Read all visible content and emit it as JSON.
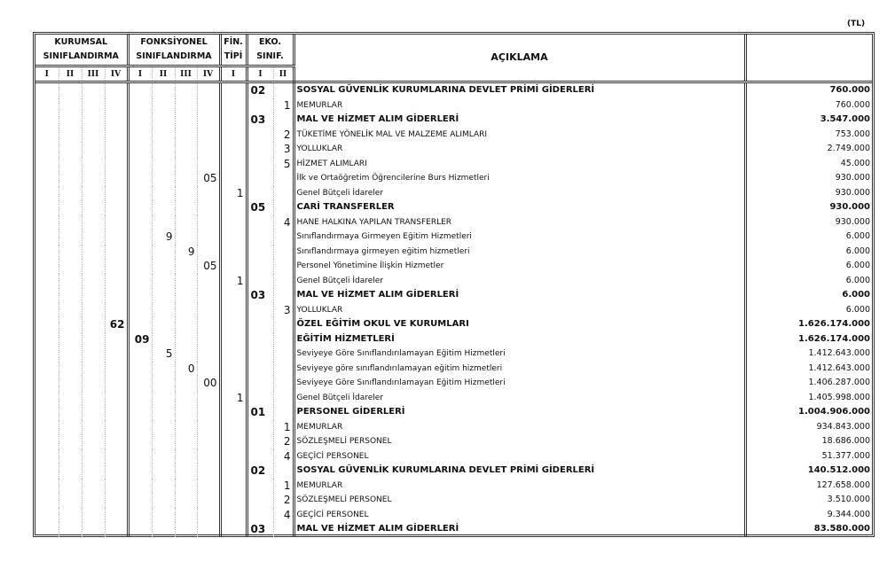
{
  "unit": "(TL)",
  "header": {
    "kurumsal": [
      "KURUMSAL",
      "SINIFLANDIRMA"
    ],
    "fonksiyonel": [
      "FONKSİYONEL",
      "SINIFLANDIRMA"
    ],
    "fin": [
      "FİN.",
      "TİPİ"
    ],
    "eko": [
      "EKO.",
      "SINIF."
    ],
    "aciklama": "AÇIKLAMA",
    "levels4": [
      "I",
      "II",
      "III",
      "IV"
    ],
    "levels1": [
      "I"
    ],
    "levels2": [
      "I",
      "II"
    ]
  },
  "rows": [
    {
      "e1": "02",
      "desc": "SOSYAL GÜVENLİK KURUMLARINA DEVLET PRİMİ GİDERLERİ",
      "amount": "760.000",
      "bold": true
    },
    {
      "e2": "1",
      "desc": "MEMURLAR",
      "amount": "760.000"
    },
    {
      "e1": "03",
      "desc": "MAL VE HİZMET ALIM GİDERLERİ",
      "amount": "3.547.000",
      "bold": true
    },
    {
      "e2": "2",
      "desc": "TÜKETİME YÖNELİK MAL VE MALZEME ALIMLARI",
      "amount": "753.000"
    },
    {
      "e2": "3",
      "desc": "YOLLUKLAR",
      "amount": "2.749.000"
    },
    {
      "e2": "5",
      "desc": "HİZMET ALIMLARI",
      "amount": "45.000"
    },
    {
      "f4": "05",
      "desc": "İlk ve Ortaöğretim Öğrencilerine Burs Hizmetleri",
      "amount": "930.000"
    },
    {
      "fin": "1",
      "desc": "Genel Bütçeli İdareler",
      "amount": "930.000"
    },
    {
      "e1": "05",
      "desc": "CARİ TRANSFERLER",
      "amount": "930.000",
      "bold": true
    },
    {
      "e2": "4",
      "desc": "HANE HALKINA YAPILAN TRANSFERLER",
      "amount": "930.000"
    },
    {
      "f2": "9",
      "desc": "Sınıflandırmaya Girmeyen Eğitim Hizmetleri",
      "amount": "6.000"
    },
    {
      "f3": "9",
      "desc": "Sınıflandırmaya girmeyen eğitim hizmetleri",
      "amount": "6.000"
    },
    {
      "f4": "05",
      "desc": "Personel Yönetimine İlişkin Hizmetler",
      "amount": "6.000"
    },
    {
      "fin": "1",
      "desc": "Genel Bütçeli İdareler",
      "amount": "6.000"
    },
    {
      "e1": "03",
      "desc": "MAL VE HİZMET ALIM GİDERLERİ",
      "amount": "6.000",
      "bold": true
    },
    {
      "e2": "3",
      "desc": "YOLLUKLAR",
      "amount": "6.000"
    },
    {
      "k4": "62",
      "desc": "ÖZEL EĞİTİM OKUL VE KURUMLARI",
      "amount": "1.626.174.000",
      "bold": true
    },
    {
      "f1": "09",
      "desc": "EĞİTİM HİZMETLERİ",
      "amount": "1.626.174.000",
      "bold": true
    },
    {
      "f2": "5",
      "desc": "Seviyeye Göre Sınıflandırılamayan Eğitim Hizmetleri",
      "amount": "1.412.643.000"
    },
    {
      "f3": "0",
      "desc": "Seviyeye göre sınıflandırılamayan eğitim hizmetleri",
      "amount": "1.412.643.000"
    },
    {
      "f4": "00",
      "desc": "Seviyeye Göre Sınıflandırılamayan Eğitim Hizmetleri",
      "amount": "1.406.287.000"
    },
    {
      "fin": "1",
      "desc": "Genel Bütçeli İdareler",
      "amount": "1.405.998.000"
    },
    {
      "e1": "01",
      "desc": "PERSONEL GİDERLERİ",
      "amount": "1.004.906.000",
      "bold": true
    },
    {
      "e2": "1",
      "desc": "MEMURLAR",
      "amount": "934.843.000"
    },
    {
      "e2": "2",
      "desc": "SÖZLEŞMELİ  PERSONEL",
      "amount": "18.686.000"
    },
    {
      "e2": "4",
      "desc": "GEÇİCİ PERSONEL",
      "amount": "51.377.000"
    },
    {
      "e1": "02",
      "desc": "SOSYAL GÜVENLİK KURUMLARINA DEVLET PRİMİ GİDERLERİ",
      "amount": "140.512.000",
      "bold": true
    },
    {
      "e2": "1",
      "desc": "MEMURLAR",
      "amount": "127.658.000"
    },
    {
      "e2": "2",
      "desc": "SÖZLEŞMELİ PERSONEL",
      "amount": "3.510.000"
    },
    {
      "e2": "4",
      "desc": "GEÇİCİ PERSONEL",
      "amount": "9.344.000"
    },
    {
      "e1": "03",
      "desc": "MAL VE HİZMET ALIM GİDERLERİ",
      "amount": "83.580.000",
      "bold": true
    }
  ]
}
